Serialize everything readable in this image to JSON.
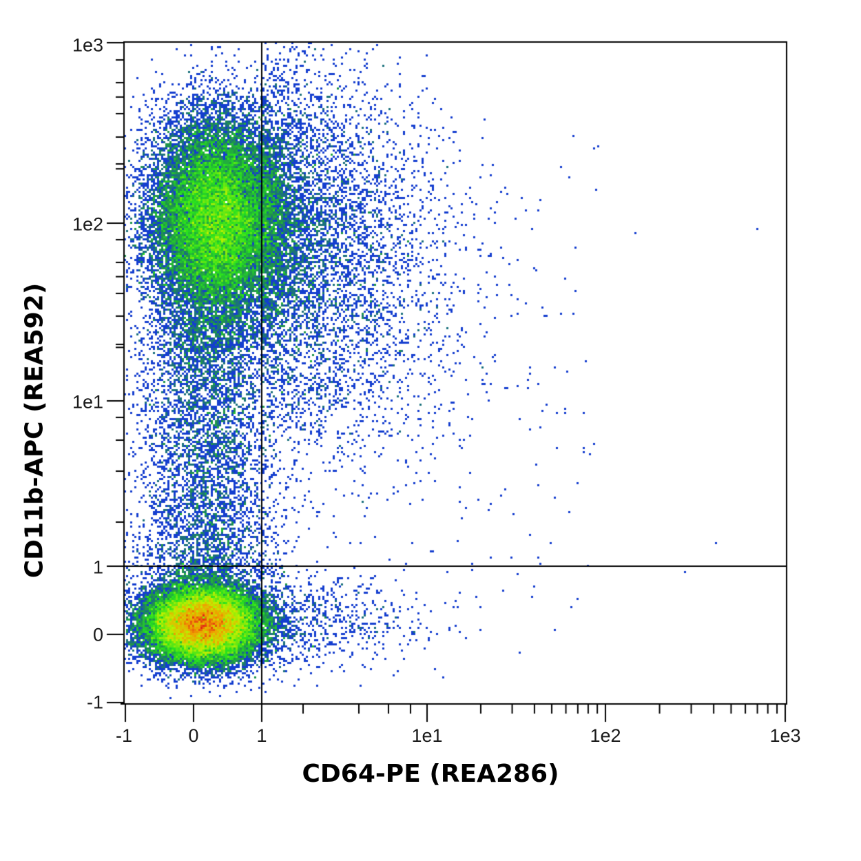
{
  "chart_data": {
    "type": "scatter",
    "subtype": "flow-cytometry-density-dot-plot",
    "title": "",
    "xlabel": "CD64-PE (REA286)",
    "ylabel": "CD11b-APC (REA592)",
    "x_scale": "biexponential",
    "y_scale": "biexponential",
    "x_ticks": [
      "-1",
      "0",
      "1",
      "1e1",
      "1e2",
      "1e3"
    ],
    "y_ticks": [
      "1e3",
      "1e2",
      "1e1",
      "1",
      "0",
      "-1"
    ],
    "xlim": [
      -1,
      1000
    ],
    "ylim": [
      -1,
      1000
    ],
    "grid": false,
    "legend": null,
    "quadrant_gate": {
      "x": 1,
      "y": 1
    },
    "populations": [
      {
        "name": "CD11b- CD64-",
        "x_center": 0.1,
        "y_center": 0.1,
        "density": "highest",
        "quadrant": "lower-left"
      },
      {
        "name": "CD11b+ CD64-",
        "x_center": 0.4,
        "y_center": 100,
        "density": "high",
        "quadrant": "upper-left"
      },
      {
        "name": "CD11b+ CD64+ (sparse)",
        "x_range": [
          1,
          100
        ],
        "y_range": [
          3,
          300
        ],
        "density": "low",
        "quadrant": "upper-right"
      },
      {
        "name": "CD11b- CD64+ (sparse)",
        "x_range": [
          1,
          100
        ],
        "y_range": [
          -0.5,
          1
        ],
        "density": "very low",
        "quadrant": "lower-right"
      }
    ],
    "color_scale": [
      "#1a33e6",
      "#1e8c4a",
      "#2ee81a",
      "#c8f000",
      "#e03010"
    ]
  },
  "axes": {
    "x_title": "CD64-PE (REA286)",
    "y_title": "CD11b-APC (REA592)",
    "x_tick_labels": [
      "-1",
      "0",
      "1",
      "1e1",
      "1e2",
      "1e3"
    ],
    "y_tick_labels": [
      "1e3",
      "1e2",
      "1e1",
      "1",
      "0",
      "-1"
    ]
  }
}
